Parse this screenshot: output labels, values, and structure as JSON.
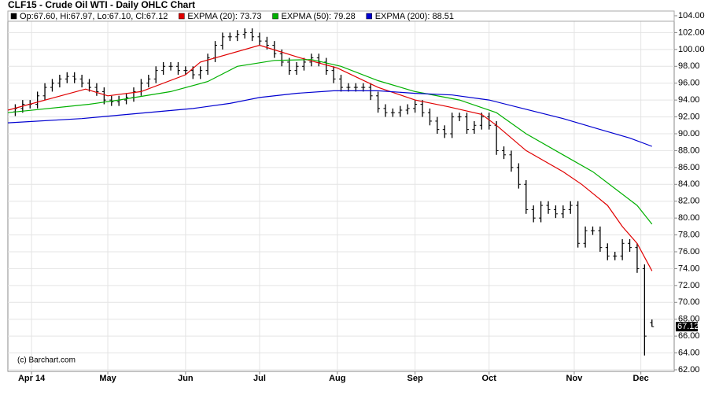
{
  "chart_data": {
    "type": "ohlc",
    "title": "CLF15 - Crude Oil WTI - Daily OHLC Chart",
    "watermark": "(c) Barchart.com",
    "last_price_label": "67.12",
    "grid": true,
    "xlim": [
      0,
      180
    ],
    "xticks": [
      {
        "value": 6.4,
        "label": "Apr 14"
      },
      {
        "value": 27,
        "label": "May"
      },
      {
        "value": 48,
        "label": "Jun"
      },
      {
        "value": 68,
        "label": "Jul"
      },
      {
        "value": 89,
        "label": "Aug"
      },
      {
        "value": 110,
        "label": "Sep"
      },
      {
        "value": 130,
        "label": "Oct"
      },
      {
        "value": 153,
        "label": "Nov"
      },
      {
        "value": 171,
        "label": "Dec"
      }
    ],
    "ylim": [
      62,
      104
    ],
    "yticks": [
      {
        "value": 62,
        "label": "62.00"
      },
      {
        "value": 64,
        "label": "64.00"
      },
      {
        "value": 66,
        "label": "66.00"
      },
      {
        "value": 68,
        "label": "68.00"
      },
      {
        "value": 70,
        "label": "70.00"
      },
      {
        "value": 72,
        "label": "72.00"
      },
      {
        "value": 74,
        "label": "74.00"
      },
      {
        "value": 76,
        "label": "76.00"
      },
      {
        "value": 78,
        "label": "78.00"
      },
      {
        "value": 80,
        "label": "80.00"
      },
      {
        "value": 82,
        "label": "82.00"
      },
      {
        "value": 84,
        "label": "84.00"
      },
      {
        "value": 86,
        "label": "86.00"
      },
      {
        "value": 88,
        "label": "88.00"
      },
      {
        "value": 90,
        "label": "90.00"
      },
      {
        "value": 92,
        "label": "92.00"
      },
      {
        "value": 94,
        "label": "94.00"
      },
      {
        "value": 96,
        "label": "96.00"
      },
      {
        "value": 98,
        "label": "98.00"
      },
      {
        "value": 100,
        "label": "100.00"
      },
      {
        "value": 102,
        "label": "102.00"
      },
      {
        "value": 104,
        "label": "104.00"
      }
    ],
    "series": [
      {
        "name": "Op:67.60, Hi:67.97, Lo:67.10, Cl:67.12",
        "kind": "ohlc",
        "color": "#000000",
        "x": [
          2,
          4,
          6,
          8,
          10,
          12,
          14,
          16,
          18,
          20,
          22,
          24,
          26,
          28,
          30,
          32,
          34,
          36,
          38,
          40,
          42,
          44,
          46,
          48,
          50,
          52,
          54,
          56,
          58,
          60,
          62,
          64,
          66,
          68,
          70,
          72,
          74,
          76,
          78,
          80,
          82,
          84,
          86,
          88,
          90,
          92,
          94,
          96,
          98,
          100,
          102,
          104,
          106,
          108,
          110,
          112,
          114,
          116,
          118,
          120,
          122,
          124,
          126,
          128,
          130,
          132,
          134,
          136,
          138,
          140,
          142,
          144,
          146,
          148,
          150,
          152,
          154,
          156,
          158,
          160,
          162,
          164,
          166,
          168,
          170,
          172,
          174
        ],
        "open": [
          92.6,
          93,
          93.5,
          93.5,
          94.5,
          95.5,
          96,
          96.5,
          96.8,
          96.5,
          96,
          95.5,
          95,
          94,
          93.8,
          94,
          94.3,
          95,
          96,
          96.5,
          97.5,
          98,
          98,
          97.5,
          97.5,
          97,
          97.5,
          99,
          100.5,
          101.5,
          101.5,
          101.8,
          102,
          101.5,
          101,
          100.5,
          99.5,
          98.5,
          97.5,
          98,
          98.5,
          99,
          98.5,
          97.5,
          96.5,
          95.5,
          95.5,
          95.5,
          95.5,
          94.5,
          93,
          92.5,
          92.5,
          92.8,
          93,
          93.5,
          92.5,
          91.5,
          90.5,
          90,
          92,
          92,
          90.5,
          91,
          92,
          91,
          88,
          87.5,
          86,
          84,
          81,
          80,
          81.5,
          81,
          80.5,
          81,
          81.5,
          77,
          78.5,
          78.5,
          76.5,
          75.5,
          75.5,
          77,
          76.5,
          74,
          67.6
        ],
        "high": [
          93.5,
          94,
          94,
          95,
          96,
          96.5,
          97,
          97.3,
          97.3,
          97,
          96.5,
          96,
          95.5,
          94.5,
          94.5,
          94.8,
          95.5,
          96.5,
          97,
          98,
          98.5,
          98.5,
          98.5,
          98,
          98,
          98,
          99.5,
          101,
          102,
          102,
          102.3,
          102.5,
          102.5,
          102,
          101.5,
          101,
          100,
          99,
          98.5,
          99,
          99.5,
          99.5,
          99,
          98,
          97,
          96,
          96,
          96,
          96,
          95,
          93.5,
          93,
          93.3,
          93.5,
          94,
          94,
          93,
          92,
          91,
          92.5,
          92.5,
          92.5,
          91.5,
          92.5,
          92.5,
          91.5,
          88.5,
          88,
          86.5,
          84.5,
          81.5,
          82,
          82,
          81.5,
          81.5,
          82,
          82,
          79,
          79,
          79,
          77,
          76,
          77.5,
          77.5,
          77,
          74.5,
          67.97
        ],
        "low": [
          92.1,
          92.5,
          93,
          93,
          94,
          95,
          95.5,
          96,
          96,
          95.5,
          95,
          94.5,
          93.5,
          93.3,
          93.3,
          93.5,
          93.8,
          94.5,
          95.5,
          96,
          97,
          97.5,
          97,
          97,
          96.5,
          96.5,
          97,
          98.5,
          100,
          101,
          101,
          101.3,
          101,
          100.5,
          100,
          99,
          98,
          97,
          97,
          97.5,
          98,
          98,
          97,
          96,
          95,
          95,
          95,
          95,
          94,
          92.5,
          92,
          92,
          92,
          92.3,
          92.5,
          92,
          91,
          90,
          89.5,
          89.5,
          91.5,
          90,
          90,
          90.5,
          90.5,
          87.5,
          87,
          85.5,
          83.5,
          80.5,
          79.5,
          79.5,
          80.5,
          80,
          80,
          80.5,
          76.5,
          76.5,
          78,
          76,
          75,
          75,
          75,
          76,
          73.5,
          63.7,
          67.1
        ],
        "close": [
          93,
          93.5,
          93.5,
          94.5,
          95.5,
          96,
          96.5,
          96.8,
          96.5,
          96,
          95.5,
          95,
          94,
          93.8,
          94,
          94.3,
          95,
          96,
          96.5,
          97.5,
          98,
          98,
          97.5,
          97.5,
          97,
          97.5,
          99,
          100.5,
          101.5,
          101.5,
          101.8,
          102,
          101.5,
          101,
          100.5,
          99.5,
          98.5,
          97.5,
          98,
          98.5,
          99,
          98.5,
          97.5,
          96.5,
          95.5,
          95.5,
          95.5,
          95.5,
          94.5,
          93,
          92.5,
          92.5,
          92.8,
          93,
          93.5,
          92.5,
          91.5,
          90.5,
          90,
          92,
          92,
          90.5,
          91,
          92,
          91,
          88,
          87.5,
          86,
          84,
          81,
          80,
          81.5,
          81,
          80.5,
          81,
          81.5,
          77,
          78.5,
          78.5,
          76.5,
          75.5,
          75.5,
          77,
          76.5,
          74,
          66,
          67.12
        ]
      },
      {
        "name": "EXPMA (20): 73.73",
        "kind": "line",
        "color": "#e00000",
        "x": [
          0,
          21,
          27,
          36,
          48,
          52,
          68,
          79,
          89,
          100,
          110,
          119,
          128,
          132,
          140,
          150,
          155,
          162,
          166,
          170,
          174
        ],
        "values": [
          92.8,
          95.3,
          94.5,
          95,
          97,
          98.5,
          100.5,
          99,
          97.8,
          95.5,
          94,
          93.2,
          92.3,
          91,
          88,
          85.5,
          84,
          81.5,
          79,
          77,
          73.73
        ]
      },
      {
        "name": "EXPMA (50): 79.28",
        "kind": "line",
        "color": "#00b000",
        "x": [
          0,
          22,
          30,
          44,
          54,
          62,
          72,
          82,
          90,
          100,
          110,
          122,
          132,
          140,
          150,
          158,
          164,
          170,
          174
        ],
        "values": [
          92.5,
          93.5,
          94,
          95,
          96.2,
          98,
          98.7,
          98.8,
          98,
          96.3,
          95,
          94,
          92.5,
          90,
          87.5,
          85.5,
          83.5,
          81.5,
          79.28
        ]
      },
      {
        "name": "EXPMA (200): 88.51",
        "kind": "line",
        "color": "#0000d0",
        "x": [
          0,
          20,
          30,
          40,
          50,
          60,
          68,
          78,
          88,
          100,
          110,
          120,
          130,
          140,
          150,
          160,
          168,
          174
        ],
        "values": [
          91.3,
          91.8,
          92.2,
          92.6,
          93,
          93.6,
          94.3,
          94.8,
          95.1,
          95.1,
          94.8,
          94.6,
          94,
          92.9,
          91.8,
          90.5,
          89.5,
          88.51
        ]
      }
    ]
  }
}
